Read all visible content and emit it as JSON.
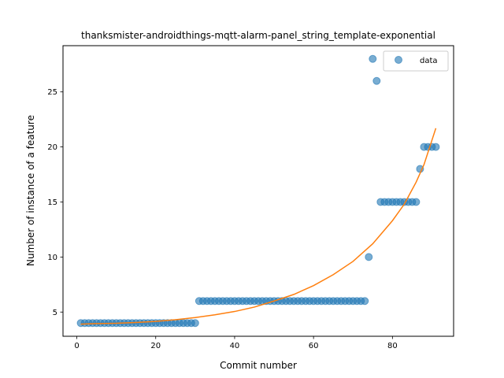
{
  "chart_data": {
    "type": "scatter",
    "title": "thanksmister-androidthings-mqtt-alarm-panel_string_template-exponential",
    "xlabel": "Commit number",
    "ylabel": "Number of instance of a feature",
    "xlim": [
      -3.5,
      95.5
    ],
    "ylim": [
      2.8,
      29.2
    ],
    "xticks": [
      0,
      20,
      40,
      60,
      80
    ],
    "yticks": [
      5,
      10,
      15,
      20,
      25
    ],
    "grid": false,
    "legend": {
      "position": "top-right",
      "entries": [
        "data"
      ]
    },
    "colors": {
      "data": "#1f77b4",
      "fit": "#ff7f0e"
    },
    "series": [
      {
        "name": "data",
        "kind": "scatter",
        "x": [
          1,
          2,
          3,
          4,
          5,
          6,
          7,
          8,
          9,
          10,
          11,
          12,
          13,
          14,
          15,
          16,
          17,
          18,
          19,
          20,
          21,
          22,
          23,
          24,
          25,
          26,
          27,
          28,
          29,
          30,
          31,
          32,
          33,
          34,
          35,
          36,
          37,
          38,
          39,
          40,
          41,
          42,
          43,
          44,
          45,
          46,
          47,
          48,
          49,
          50,
          51,
          52,
          53,
          54,
          55,
          56,
          57,
          58,
          59,
          60,
          61,
          62,
          63,
          64,
          65,
          66,
          67,
          68,
          69,
          70,
          71,
          72,
          73,
          74,
          75,
          76,
          77,
          78,
          79,
          80,
          81,
          82,
          83,
          84,
          85,
          86,
          87,
          88,
          89,
          90,
          91
        ],
        "y": [
          4,
          4,
          4,
          4,
          4,
          4,
          4,
          4,
          4,
          4,
          4,
          4,
          4,
          4,
          4,
          4,
          4,
          4,
          4,
          4,
          4,
          4,
          4,
          4,
          4,
          4,
          4,
          4,
          4,
          4,
          6,
          6,
          6,
          6,
          6,
          6,
          6,
          6,
          6,
          6,
          6,
          6,
          6,
          6,
          6,
          6,
          6,
          6,
          6,
          6,
          6,
          6,
          6,
          6,
          6,
          6,
          6,
          6,
          6,
          6,
          6,
          6,
          6,
          6,
          6,
          6,
          6,
          6,
          6,
          6,
          6,
          6,
          6,
          10,
          28,
          26,
          15,
          15,
          15,
          15,
          15,
          15,
          15,
          15,
          15,
          15,
          18,
          20,
          20,
          20,
          20
        ]
      },
      {
        "kind": "line",
        "x": [
          1,
          5,
          10,
          15,
          20,
          25,
          30,
          35,
          40,
          45,
          50,
          55,
          60,
          65,
          70,
          75,
          80,
          83,
          86,
          88,
          91
        ],
        "y": [
          3.9,
          3.95,
          3.98,
          4.05,
          4.15,
          4.3,
          4.5,
          4.75,
          5.05,
          5.45,
          6.0,
          6.6,
          7.4,
          8.4,
          9.6,
          11.2,
          13.3,
          14.8,
          16.8,
          18.4,
          21.7
        ]
      }
    ]
  }
}
